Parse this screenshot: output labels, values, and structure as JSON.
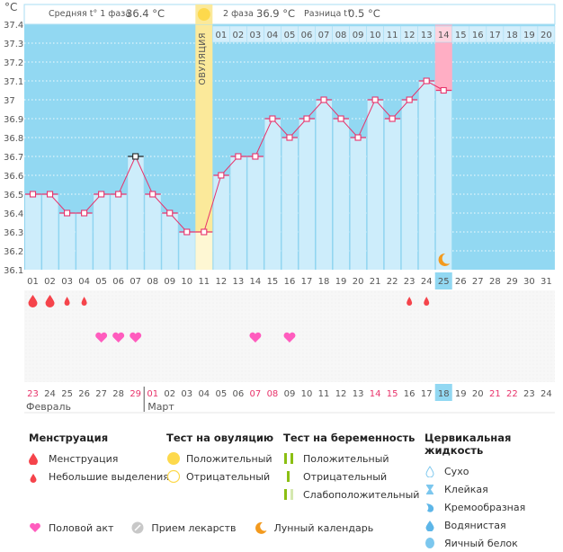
{
  "header": {
    "unit_label": "°C",
    "phase1_label": "Средняя t° 1 фаза",
    "phase1_value": "36.4 °C",
    "phase2_label": "2 фаза",
    "phase2_value": "36.9 °C",
    "diff_label": "Разница t°",
    "diff_value": "0.5 °C",
    "ovulation_label": "ОВУЛЯЦИЯ"
  },
  "chart_data": {
    "type": "line",
    "title": "",
    "xlabel": "",
    "ylabel": "°C",
    "ylim": [
      36.1,
      37.4
    ],
    "yticks": [
      "37.4",
      "37.3",
      "37.2",
      "37.1",
      "37",
      "36.9",
      "36.8",
      "36.7",
      "36.6",
      "36.5",
      "36.4",
      "36.3",
      "36.2",
      "36.1"
    ],
    "cycle_days": [
      "01",
      "02",
      "03",
      "04",
      "05",
      "06",
      "07",
      "08",
      "09",
      "10",
      "11",
      "12",
      "13",
      "14",
      "15",
      "16",
      "17",
      "18",
      "19",
      "20",
      "21",
      "22",
      "23",
      "24",
      "25",
      "26",
      "27",
      "28",
      "29",
      "30",
      "31"
    ],
    "post_ovulation_days": [
      "01",
      "02",
      "03",
      "04",
      "05",
      "06",
      "07",
      "08",
      "09",
      "10",
      "11",
      "12",
      "13",
      "14",
      "15",
      "16",
      "17",
      "18",
      "19",
      "20"
    ],
    "temperatures": [
      36.5,
      36.5,
      36.4,
      36.4,
      36.5,
      36.5,
      36.7,
      36.5,
      36.4,
      36.3,
      36.3,
      36.6,
      36.7,
      36.7,
      36.9,
      36.8,
      36.9,
      37.0,
      36.9,
      36.8,
      37.0,
      36.9,
      37.0,
      37.1,
      37.05
    ],
    "highlighted_point_day": 7,
    "ovulation_day": 11,
    "expected_period_post_day": "14",
    "current_cycle_day": "25",
    "moon_day": 25,
    "calendar_dates": [
      "23",
      "24",
      "25",
      "26",
      "27",
      "28",
      "29",
      "01",
      "02",
      "03",
      "04",
      "05",
      "06",
      "07",
      "08",
      "09",
      "10",
      "11",
      "12",
      "13",
      "14",
      "15",
      "16",
      "17",
      "18",
      "19",
      "20",
      "21",
      "22",
      "23",
      "24"
    ],
    "weekend_date_indices": [
      0,
      6,
      7,
      13,
      14,
      20,
      21,
      27,
      28
    ],
    "today_date_index": 24,
    "months": [
      {
        "name": "Февраль",
        "start_index": 0
      },
      {
        "name": "Март",
        "start_index": 7
      }
    ],
    "menstruation": [
      {
        "day": 1,
        "type": "heavy"
      },
      {
        "day": 2,
        "type": "heavy"
      },
      {
        "day": 3,
        "type": "light"
      },
      {
        "day": 4,
        "type": "light"
      },
      {
        "day": 23,
        "type": "light"
      },
      {
        "day": 24,
        "type": "light"
      }
    ],
    "intercourse_days": [
      5,
      6,
      7,
      14,
      16
    ],
    "colors": {
      "line": "#e8336b",
      "bg": "#92d8f2",
      "bar": "#cdedfb",
      "ovulation": "#fbe99a",
      "expected": "#ffaec4"
    }
  },
  "legend": {
    "menstruation": {
      "title": "Менструация",
      "items": [
        "Менструация",
        "Небольшие выделения"
      ]
    },
    "ovulation_test": {
      "title": "Тест на овуляцию",
      "items": [
        "Положительный",
        "Отрицательный"
      ]
    },
    "pregnancy_test": {
      "title": "Тест на беременность",
      "items": [
        "Положительный",
        "Отрицательный",
        "Слабоположительный"
      ]
    },
    "cervical_fluid": {
      "title": "Цервикальная жидкость",
      "items": [
        "Сухо",
        "Клейкая",
        "Кремообразная",
        "Водянистая",
        "Яичный белок"
      ]
    },
    "bottom": [
      "Половой акт",
      "Прием лекарств",
      "Лунный календарь"
    ]
  }
}
